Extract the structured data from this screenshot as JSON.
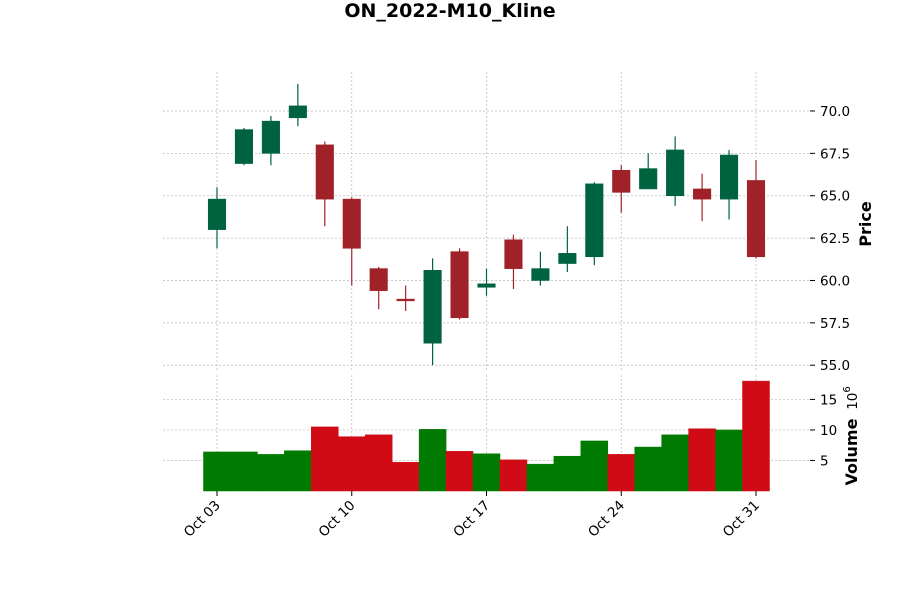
{
  "chart_data": {
    "type": "candlestick",
    "title": "ON_2022-M10_Kline",
    "price_label": "Price",
    "volume_label": "Volume",
    "volume_exponent_base": "10",
    "volume_exponent_power": "6",
    "price_ylim": [
      54.6,
      72.3
    ],
    "volume_ylim": [
      0,
      19
    ],
    "price_ticks": [
      "55.0",
      "57.5",
      "60.0",
      "62.5",
      "65.0",
      "67.5",
      "70.0"
    ],
    "price_tick_values": [
      55.0,
      57.5,
      60.0,
      62.5,
      65.0,
      67.5,
      70.0
    ],
    "volume_ticks": [
      "5",
      "10",
      "15"
    ],
    "volume_tick_values": [
      5,
      10,
      15
    ],
    "x_ticks": [
      {
        "label": "Oct 03",
        "index": 0
      },
      {
        "label": "Oct 10",
        "index": 5
      },
      {
        "label": "Oct 17",
        "index": 10
      },
      {
        "label": "Oct 24",
        "index": 15
      },
      {
        "label": "Oct 31",
        "index": 20
      }
    ],
    "grid": true,
    "colors": {
      "up_candle": "#006340",
      "down_candle": "#A02128",
      "up_volume": "#007A00",
      "down_volume": "#D00B15"
    },
    "candles": [
      {
        "date": "2022-10-03",
        "open": 63.0,
        "high": 65.5,
        "low": 61.9,
        "close": 64.8,
        "volume": 6.4
      },
      {
        "date": "2022-10-04",
        "open": 66.9,
        "high": 69.0,
        "low": 66.8,
        "close": 68.9,
        "volume": 6.4
      },
      {
        "date": "2022-10-05",
        "open": 67.5,
        "high": 69.7,
        "low": 66.8,
        "close": 69.4,
        "volume": 6.0
      },
      {
        "date": "2022-10-06",
        "open": 69.6,
        "high": 71.6,
        "low": 69.1,
        "close": 70.3,
        "volume": 6.6
      },
      {
        "date": "2022-10-07",
        "open": 68.0,
        "high": 68.2,
        "low": 63.2,
        "close": 64.8,
        "volume": 10.5
      },
      {
        "date": "2022-10-10",
        "open": 64.8,
        "high": 64.9,
        "low": 59.7,
        "close": 61.9,
        "volume": 8.9
      },
      {
        "date": "2022-10-11",
        "open": 60.7,
        "high": 60.8,
        "low": 58.3,
        "close": 59.4,
        "volume": 9.2
      },
      {
        "date": "2022-10-12",
        "open": 58.9,
        "high": 59.7,
        "low": 58.2,
        "close": 58.8,
        "volume": 4.7
      },
      {
        "date": "2022-10-13",
        "open": 56.3,
        "high": 61.3,
        "low": 55.0,
        "close": 60.6,
        "volume": 10.1
      },
      {
        "date": "2022-10-14",
        "open": 61.7,
        "high": 61.9,
        "low": 57.7,
        "close": 57.8,
        "volume": 6.5
      },
      {
        "date": "2022-10-17",
        "open": 59.6,
        "high": 60.7,
        "low": 59.1,
        "close": 59.8,
        "volume": 6.1
      },
      {
        "date": "2022-10-18",
        "open": 62.4,
        "high": 62.7,
        "low": 59.5,
        "close": 60.7,
        "volume": 5.1
      },
      {
        "date": "2022-10-19",
        "open": 60.0,
        "high": 61.7,
        "low": 59.7,
        "close": 60.7,
        "volume": 4.4
      },
      {
        "date": "2022-10-20",
        "open": 61.0,
        "high": 63.2,
        "low": 60.5,
        "close": 61.6,
        "volume": 5.7
      },
      {
        "date": "2022-10-21",
        "open": 61.4,
        "high": 65.8,
        "low": 60.9,
        "close": 65.7,
        "volume": 8.2
      },
      {
        "date": "2022-10-24",
        "open": 66.5,
        "high": 66.8,
        "low": 64.0,
        "close": 65.2,
        "volume": 6.0
      },
      {
        "date": "2022-10-25",
        "open": 65.4,
        "high": 67.5,
        "low": 65.4,
        "close": 66.6,
        "volume": 7.2
      },
      {
        "date": "2022-10-26",
        "open": 65.0,
        "high": 68.5,
        "low": 64.4,
        "close": 67.7,
        "volume": 9.2
      },
      {
        "date": "2022-10-27",
        "open": 65.4,
        "high": 66.3,
        "low": 63.5,
        "close": 64.8,
        "volume": 10.2
      },
      {
        "date": "2022-10-28",
        "open": 64.8,
        "high": 67.7,
        "low": 63.6,
        "close": 67.4,
        "volume": 10.0
      },
      {
        "date": "2022-10-31",
        "open": 65.9,
        "high": 67.1,
        "low": 61.3,
        "close": 61.4,
        "volume": 18.0
      }
    ]
  }
}
